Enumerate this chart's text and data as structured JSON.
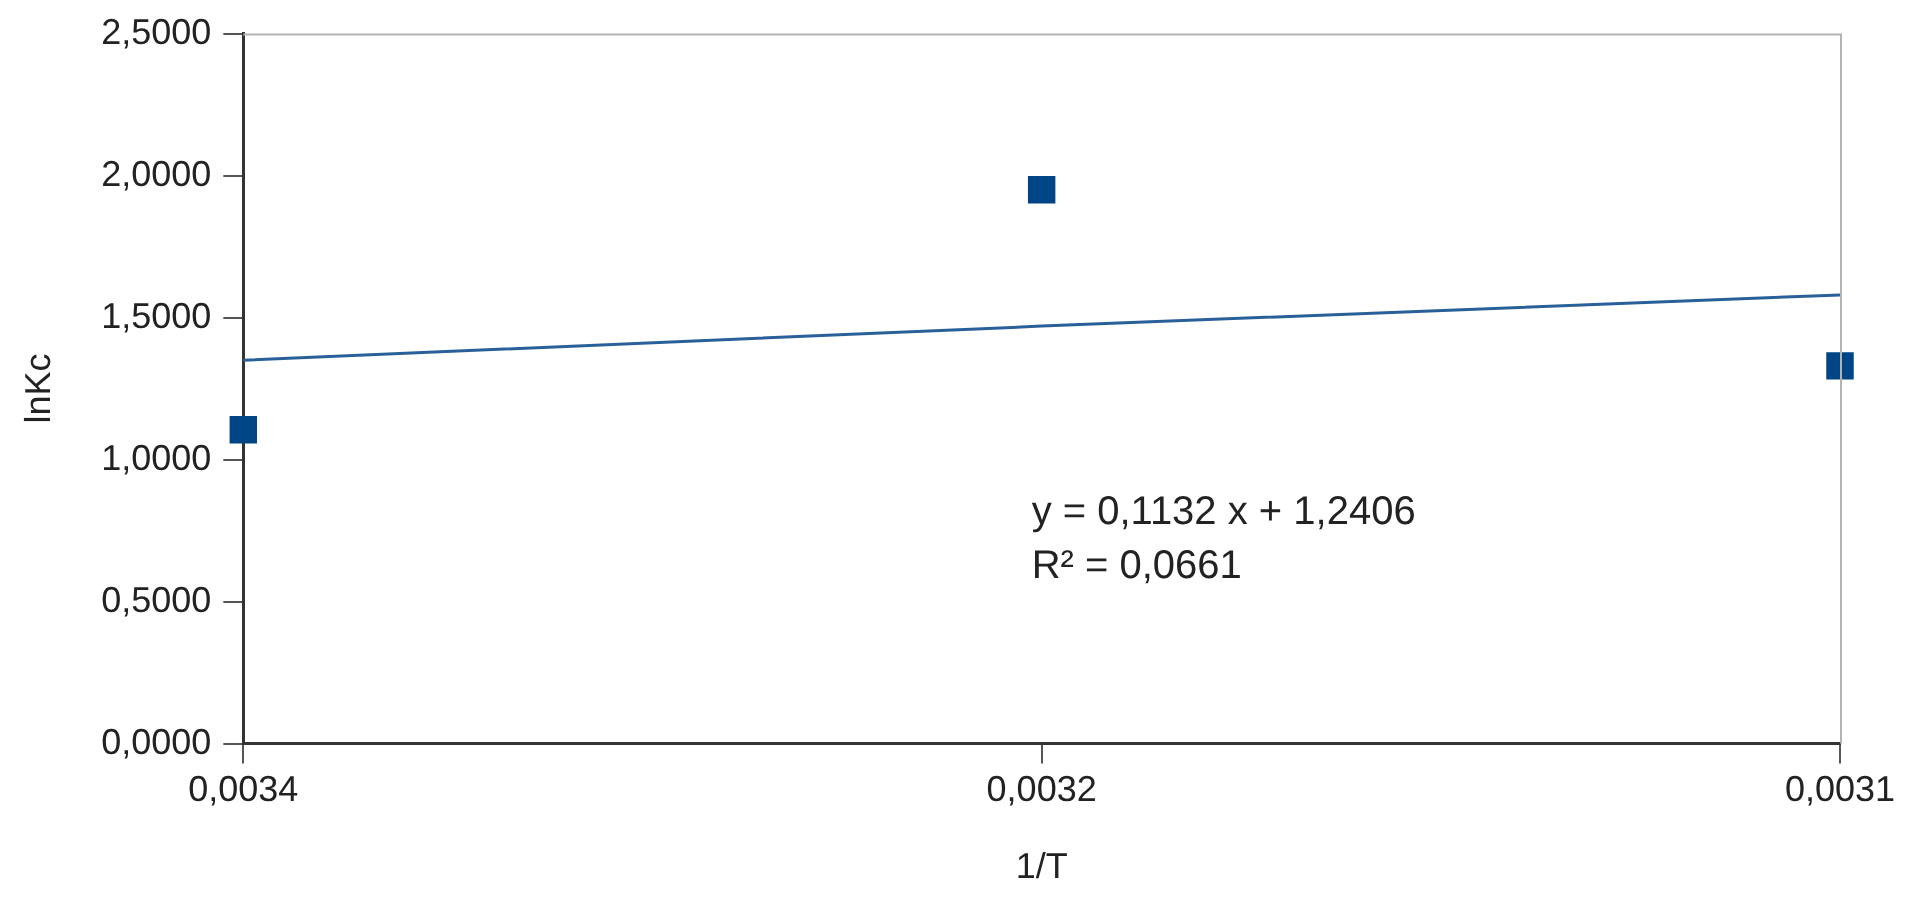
{
  "chart_data": {
    "type": "scatter",
    "xlabel": "1/T",
    "ylabel": "lnKc",
    "categories": [
      "0,0034",
      "0,0032",
      "0,0031"
    ],
    "series": [
      {
        "color": "#004586",
        "values": [
          1.105,
          1.95,
          1.33
        ],
        "marker": "square"
      },
      {
        "type": "line",
        "color": "#2a6099",
        "values": [
          1.35,
          1.47,
          1.58
        ],
        "marker": "none",
        "line_style": "solid"
      }
    ],
    "ylim": [
      0,
      2.5
    ],
    "yticks": [
      {
        "value": 0,
        "label": "0,0000"
      },
      {
        "value": 0.5,
        "label": "0,5000"
      },
      {
        "value": 1,
        "label": "1,0000"
      },
      {
        "value": 1.5,
        "label": "1,5000"
      },
      {
        "value": 2,
        "label": "2,0000"
      },
      {
        "value": 2.5,
        "label": "2,5000"
      }
    ],
    "grid": false,
    "legend": false,
    "annotations": [
      "y = 0,1132 x + 1,2406",
      "R² = 0,0661"
    ]
  }
}
